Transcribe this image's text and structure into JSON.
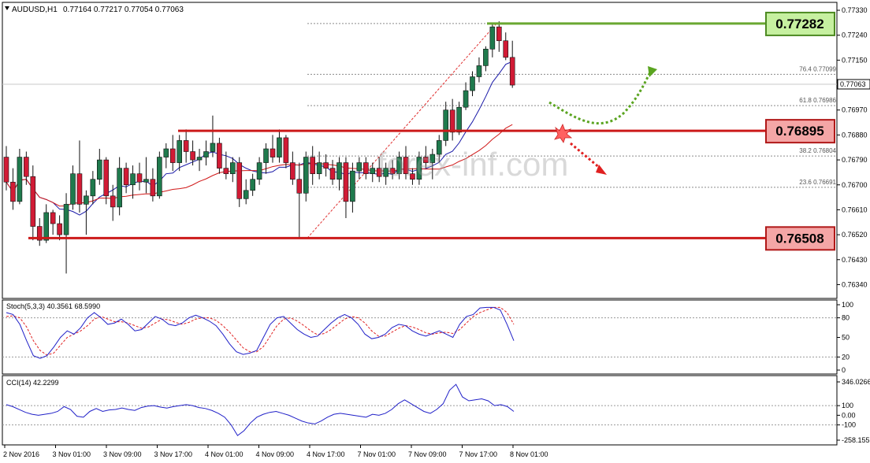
{
  "header": {
    "symbol": "AUDUSD,H1",
    "quote": "0.77164 0.77217 0.77054 0.77063"
  },
  "watermark": "forex-inf.com",
  "chart_data": {
    "type": "candlestick",
    "symbol": "AUDUSD",
    "timeframe": "H1",
    "price_axis": {
      "ticks": [
        "0.77330",
        "0.77240",
        "0.77150",
        "0.76970",
        "0.76880",
        "0.76790",
        "0.76700",
        "0.76610",
        "0.76520",
        "0.76430",
        "0.76340"
      ],
      "range": [
        0.7631,
        0.7735
      ]
    },
    "current_price": "0.77063",
    "levels": [
      {
        "label": "0.77282",
        "value": 0.77282,
        "color": "#6aa832"
      },
      {
        "label": "0.76895",
        "value": 0.76895,
        "color": "#cc1a1a"
      },
      {
        "label": "0.76508",
        "value": 0.76508,
        "color": "#cc1a1a"
      }
    ],
    "fibonacci": [
      {
        "label": "76.4 0.77099",
        "value": 0.77099
      },
      {
        "label": "61.8 0.76986",
        "value": 0.76986
      },
      {
        "label": "38.2 0.76804",
        "value": 0.76804
      },
      {
        "label": "23.6 0.76691",
        "value": 0.76691
      }
    ],
    "fib_top": 0.77282,
    "fib_bottom": 0.76508,
    "time_labels": [
      "2 Nov 2016",
      "3 Nov 01:00",
      "3 Nov 09:00",
      "3 Nov 17:00",
      "4 Nov 01:00",
      "4 Nov 09:00",
      "4 Nov 17:00",
      "7 Nov 01:00",
      "7 Nov 09:00",
      "7 Nov 17:00",
      "8 Nov 01:00"
    ],
    "candles": [
      [
        0.768,
        0.7684,
        0.7668,
        0.7671
      ],
      [
        0.7671,
        0.7676,
        0.7661,
        0.7664
      ],
      [
        0.7664,
        0.7683,
        0.7663,
        0.768
      ],
      [
        0.768,
        0.7682,
        0.767,
        0.7673
      ],
      [
        0.7673,
        0.7677,
        0.765,
        0.7655
      ],
      [
        0.7655,
        0.7658,
        0.7648,
        0.765
      ],
      [
        0.765,
        0.7663,
        0.7649,
        0.766
      ],
      [
        0.766,
        0.7661,
        0.7652,
        0.7656
      ],
      [
        0.7656,
        0.7659,
        0.765,
        0.7652
      ],
      [
        0.7652,
        0.7667,
        0.7638,
        0.7663
      ],
      [
        0.7663,
        0.7677,
        0.7661,
        0.7674
      ],
      [
        0.7674,
        0.7686,
        0.766,
        0.7663
      ],
      [
        0.7663,
        0.7668,
        0.7652,
        0.7666
      ],
      [
        0.7666,
        0.7675,
        0.7663,
        0.7672
      ],
      [
        0.7672,
        0.7683,
        0.767,
        0.7679
      ],
      [
        0.7679,
        0.768,
        0.7663,
        0.7666
      ],
      [
        0.7666,
        0.767,
        0.7657,
        0.7662
      ],
      [
        0.7662,
        0.768,
        0.7659,
        0.7676
      ],
      [
        0.7676,
        0.7678,
        0.7667,
        0.767
      ],
      [
        0.767,
        0.7677,
        0.7665,
        0.7674
      ],
      [
        0.7674,
        0.7678,
        0.7668,
        0.7671
      ],
      [
        0.7671,
        0.768,
        0.7667,
        0.7672
      ],
      [
        0.7672,
        0.7676,
        0.7664,
        0.7666
      ],
      [
        0.7666,
        0.7682,
        0.7665,
        0.768
      ],
      [
        0.768,
        0.7685,
        0.7676,
        0.7683
      ],
      [
        0.7683,
        0.7688,
        0.7675,
        0.7678
      ],
      [
        0.7678,
        0.7688,
        0.7675,
        0.7686
      ],
      [
        0.7686,
        0.769,
        0.7678,
        0.7682
      ],
      [
        0.7682,
        0.7686,
        0.7677,
        0.7679
      ],
      [
        0.7679,
        0.7683,
        0.7675,
        0.768
      ],
      [
        0.768,
        0.7686,
        0.7677,
        0.7682
      ],
      [
        0.7682,
        0.7695,
        0.768,
        0.7685
      ],
      [
        0.7685,
        0.7687,
        0.7674,
        0.7676
      ],
      [
        0.7676,
        0.7682,
        0.7672,
        0.7674
      ],
      [
        0.7674,
        0.768,
        0.7671,
        0.7678
      ],
      [
        0.7678,
        0.768,
        0.7662,
        0.7665
      ],
      [
        0.7665,
        0.7672,
        0.7663,
        0.7668
      ],
      [
        0.7668,
        0.7674,
        0.7666,
        0.7672
      ],
      [
        0.7672,
        0.768,
        0.767,
        0.7678
      ],
      [
        0.7678,
        0.7685,
        0.7674,
        0.7683
      ],
      [
        0.7683,
        0.7688,
        0.7678,
        0.768
      ],
      [
        0.768,
        0.769,
        0.7678,
        0.7687
      ],
      [
        0.7687,
        0.7688,
        0.7676,
        0.7678
      ],
      [
        0.7678,
        0.7682,
        0.767,
        0.7672
      ],
      [
        0.7672,
        0.7678,
        0.7651,
        0.7667
      ],
      [
        0.7667,
        0.7682,
        0.7664,
        0.768
      ],
      [
        0.768,
        0.7684,
        0.767,
        0.7674
      ],
      [
        0.7674,
        0.7682,
        0.7672,
        0.7678
      ],
      [
        0.7678,
        0.7681,
        0.7673,
        0.7676
      ],
      [
        0.7676,
        0.7679,
        0.767,
        0.7672
      ],
      [
        0.7672,
        0.768,
        0.7668,
        0.7678
      ],
      [
        0.7678,
        0.768,
        0.7658,
        0.7664
      ],
      [
        0.7664,
        0.7678,
        0.766,
        0.7675
      ],
      [
        0.7675,
        0.768,
        0.7672,
        0.7678
      ],
      [
        0.7678,
        0.768,
        0.7672,
        0.7674
      ],
      [
        0.7674,
        0.7678,
        0.7671,
        0.7676
      ],
      [
        0.7676,
        0.768,
        0.7671,
        0.7673
      ],
      [
        0.7673,
        0.7678,
        0.767,
        0.7676
      ],
      [
        0.7676,
        0.7679,
        0.7672,
        0.7674
      ],
      [
        0.7674,
        0.7682,
        0.7672,
        0.768
      ],
      [
        0.768,
        0.7684,
        0.7672,
        0.7674
      ],
      [
        0.7674,
        0.7676,
        0.767,
        0.7672
      ],
      [
        0.7672,
        0.7682,
        0.767,
        0.768
      ],
      [
        0.768,
        0.7684,
        0.7676,
        0.7678
      ],
      [
        0.7678,
        0.7683,
        0.7672,
        0.7681
      ],
      [
        0.7681,
        0.7688,
        0.7678,
        0.7686
      ],
      [
        0.7686,
        0.77,
        0.7684,
        0.7697
      ],
      [
        0.7697,
        0.7701,
        0.7686,
        0.7689
      ],
      [
        0.7689,
        0.77,
        0.7688,
        0.7698
      ],
      [
        0.7698,
        0.7707,
        0.7697,
        0.7704
      ],
      [
        0.7704,
        0.7711,
        0.7702,
        0.7709
      ],
      [
        0.7709,
        0.7716,
        0.7707,
        0.7713
      ],
      [
        0.7713,
        0.772,
        0.7711,
        0.7719
      ],
      [
        0.7719,
        0.7728,
        0.7716,
        0.7727
      ],
      [
        0.7727,
        0.7729,
        0.7718,
        0.7722
      ],
      [
        0.7722,
        0.7725,
        0.7715,
        0.7716
      ],
      [
        0.7716,
        0.7722,
        0.7705,
        0.7706
      ]
    ],
    "stochastic": {
      "label": "Stoch(5,3,3) 40.3561 68.5990",
      "levels": [
        "100",
        "80",
        "50",
        "20",
        "0"
      ],
      "main": [
        88,
        85,
        70,
        45,
        22,
        18,
        22,
        35,
        50,
        60,
        55,
        65,
        80,
        88,
        80,
        70,
        72,
        78,
        70,
        60,
        62,
        72,
        82,
        78,
        70,
        68,
        72,
        80,
        84,
        80,
        75,
        68,
        55,
        40,
        28,
        24,
        26,
        30,
        50,
        70,
        80,
        82,
        72,
        62,
        55,
        50,
        52,
        62,
        72,
        80,
        85,
        80,
        70,
        55,
        48,
        50,
        55,
        65,
        70,
        68,
        60,
        55,
        52,
        56,
        60,
        55,
        50,
        70,
        82,
        85,
        95,
        96,
        96,
        92,
        70,
        45
      ],
      "signal": [
        82,
        83,
        80,
        66,
        45,
        30,
        23,
        26,
        38,
        50,
        55,
        60,
        68,
        78,
        82,
        78,
        74,
        74,
        72,
        68,
        64,
        66,
        72,
        78,
        77,
        73,
        70,
        73,
        78,
        80,
        80,
        76,
        68,
        58,
        46,
        34,
        28,
        28,
        36,
        52,
        68,
        78,
        80,
        75,
        68,
        60,
        54,
        56,
        62,
        70,
        78,
        82,
        80,
        72,
        60,
        52,
        52,
        58,
        64,
        68,
        66,
        62,
        57,
        55,
        57,
        58,
        56,
        62,
        72,
        82,
        88,
        92,
        96,
        96,
        88,
        70
      ]
    },
    "cci": {
      "label": "CCI(14) 42.2299",
      "ticks": [
        "346.0266",
        "100",
        "0.00",
        "-100",
        "-258.1557"
      ],
      "range": [
        -258.1557,
        346.0266
      ],
      "values": [
        110,
        90,
        60,
        30,
        10,
        0,
        10,
        20,
        40,
        90,
        60,
        -10,
        -20,
        40,
        70,
        40,
        55,
        60,
        75,
        60,
        50,
        80,
        95,
        100,
        85,
        75,
        90,
        100,
        110,
        100,
        80,
        70,
        50,
        20,
        -20,
        -100,
        -210,
        -160,
        -80,
        -20,
        10,
        30,
        40,
        20,
        0,
        -30,
        -60,
        -80,
        -90,
        -60,
        -20,
        10,
        20,
        10,
        0,
        -10,
        -20,
        10,
        0,
        20,
        60,
        120,
        160,
        120,
        80,
        40,
        20,
        60,
        120,
        260,
        320,
        190,
        150,
        160,
        170,
        150,
        100,
        110,
        90,
        40
      ]
    }
  }
}
